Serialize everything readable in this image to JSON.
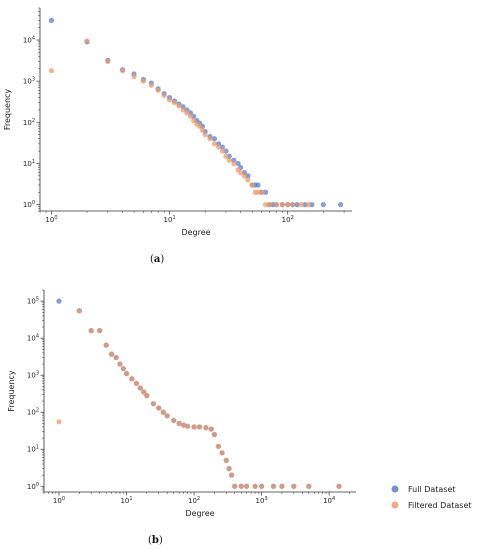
{
  "figure": {
    "caption_a": "(a)",
    "caption_b": "(b)"
  },
  "colors": {
    "full": "#5b7fc4",
    "filtered": "#ec9a6e"
  },
  "chart_data": [
    {
      "type": "scatter",
      "panel": "a",
      "xlabel": "Degree",
      "ylabel": "Frequency",
      "xscale": "log",
      "yscale": "log",
      "xlim": [
        0.8,
        350
      ],
      "ylim": [
        0.7,
        60000
      ],
      "xticks": [
        1,
        10,
        100
      ],
      "yticks": [
        1,
        10,
        100,
        1000,
        10000
      ],
      "grid": false,
      "series": [
        {
          "name": "Full Dataset",
          "x": [
            1,
            2,
            3,
            4,
            5,
            6,
            7,
            8,
            9,
            10,
            11,
            12,
            13,
            14,
            15,
            16,
            17,
            18,
            19,
            20,
            22,
            24,
            26,
            28,
            30,
            32,
            35,
            38,
            40,
            43,
            46,
            50,
            53,
            56,
            60,
            65,
            70,
            75,
            80,
            90,
            100,
            110,
            120,
            140,
            160,
            200,
            280
          ],
          "y": [
            30000,
            9000,
            3200,
            1900,
            1500,
            1100,
            900,
            650,
            500,
            400,
            330,
            280,
            240,
            200,
            170,
            140,
            110,
            95,
            80,
            60,
            45,
            40,
            30,
            25,
            20,
            15,
            12,
            10,
            8,
            6,
            5,
            3,
            3,
            3,
            2,
            2,
            1,
            1,
            1,
            1,
            1,
            1,
            1,
            1,
            1,
            1,
            1
          ]
        },
        {
          "name": "Filtered Dataset",
          "x": [
            1,
            2,
            3,
            4,
            5,
            6,
            7,
            8,
            9,
            10,
            11,
            12,
            13,
            14,
            15,
            16,
            17,
            18,
            19,
            20,
            22,
            24,
            26,
            28,
            30,
            32,
            35,
            38,
            40,
            43,
            46,
            50,
            53,
            56,
            60,
            65,
            70,
            80,
            90,
            100,
            110,
            130,
            150
          ],
          "y": [
            1800,
            9500,
            3000,
            1800,
            1300,
            1000,
            800,
            600,
            450,
            350,
            300,
            250,
            200,
            170,
            140,
            110,
            90,
            80,
            65,
            50,
            40,
            30,
            25,
            20,
            15,
            12,
            10,
            7,
            6,
            5,
            4,
            3,
            2,
            2,
            2,
            1,
            1,
            1,
            1,
            1,
            1,
            1,
            1
          ]
        }
      ]
    },
    {
      "type": "scatter",
      "panel": "b",
      "xlabel": "Degree",
      "ylabel": "Frequency",
      "xscale": "log",
      "yscale": "log",
      "xlim": [
        0.6,
        25000
      ],
      "ylim": [
        0.7,
        200000
      ],
      "xticks": [
        1,
        10,
        100,
        1000,
        10000
      ],
      "yticks": [
        1,
        10,
        100,
        1000,
        10000,
        100000
      ],
      "grid": false,
      "series": [
        {
          "name": "Full Dataset",
          "x": [
            1,
            2,
            3,
            4,
            5,
            6,
            7,
            8,
            9,
            10,
            12,
            14,
            16,
            18,
            20,
            25,
            30,
            35,
            40,
            50,
            60,
            70,
            80,
            100,
            120,
            150,
            180,
            200,
            230,
            260,
            300,
            330,
            360,
            400,
            500,
            600,
            800,
            1000,
            1500,
            2000,
            3000,
            5000,
            14000
          ],
          "y": [
            100000,
            55000,
            16000,
            16000,
            6500,
            3700,
            3000,
            2000,
            1500,
            1100,
            800,
            600,
            450,
            350,
            280,
            170,
            130,
            100,
            80,
            60,
            50,
            45,
            42,
            40,
            40,
            38,
            35,
            25,
            12,
            8,
            5,
            3,
            2,
            1,
            1,
            1,
            1,
            1,
            1,
            1,
            1,
            1,
            1
          ]
        },
        {
          "name": "Filtered Dataset",
          "x": [
            1,
            2,
            3,
            4,
            5,
            6,
            7,
            8,
            9,
            10,
            12,
            14,
            16,
            18,
            20,
            25,
            30,
            35,
            40,
            50,
            60,
            70,
            80,
            100,
            120,
            150,
            180,
            200,
            230,
            260,
            300,
            330,
            360,
            400,
            500,
            600,
            800,
            1000,
            1500,
            2000,
            3000,
            5000,
            14000
          ],
          "y": [
            55,
            55000,
            16000,
            16000,
            6500,
            3700,
            3000,
            2000,
            1500,
            1100,
            800,
            600,
            450,
            350,
            280,
            170,
            130,
            100,
            80,
            60,
            50,
            45,
            42,
            40,
            40,
            38,
            35,
            25,
            12,
            8,
            5,
            3,
            2,
            1,
            1,
            1,
            1,
            1,
            1,
            1,
            1,
            1,
            1
          ]
        }
      ],
      "legend": {
        "placement": "lower-right-outside",
        "entries": [
          "Full Dataset",
          "Filtered Dataset"
        ]
      }
    }
  ]
}
